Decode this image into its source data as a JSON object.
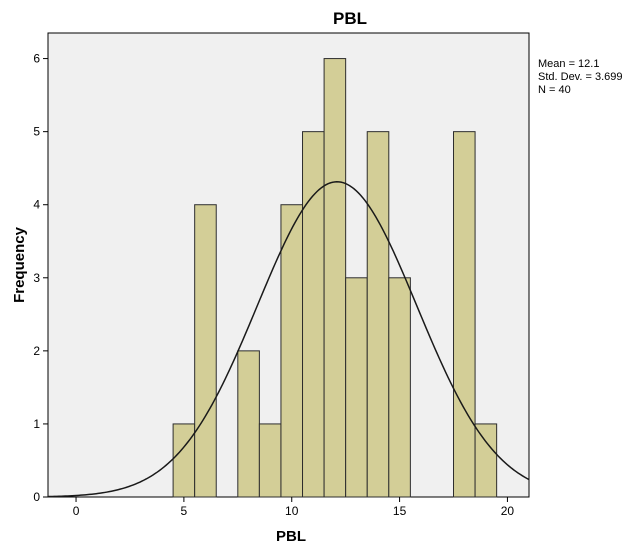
{
  "chart_data": {
    "type": "bar",
    "title": "PBL",
    "xlabel": "PBL",
    "ylabel": "Frequency",
    "xlim": [
      -1.3,
      21.0
    ],
    "ylim": [
      0,
      6.35
    ],
    "xticks": [
      0,
      5,
      10,
      15,
      20
    ],
    "yticks": [
      0,
      1,
      2,
      3,
      4,
      5,
      6
    ],
    "bin_width": 1,
    "bins": [
      {
        "x": 5,
        "count": 1
      },
      {
        "x": 6,
        "count": 4
      },
      {
        "x": 8,
        "count": 2
      },
      {
        "x": 9,
        "count": 1
      },
      {
        "x": 10,
        "count": 4
      },
      {
        "x": 11,
        "count": 5
      },
      {
        "x": 12,
        "count": 6
      },
      {
        "x": 13,
        "count": 3
      },
      {
        "x": 14,
        "count": 5
      },
      {
        "x": 15,
        "count": 3
      },
      {
        "x": 18,
        "count": 5
      },
      {
        "x": 19,
        "count": 1
      }
    ],
    "normal_curve": {
      "mean": 12.1,
      "std_dev": 3.699,
      "n": 40
    },
    "stats_lines": [
      "Mean = 12.1",
      "Std. Dev. = 3.699",
      "N = 40"
    ],
    "legend_position": "right",
    "grid": false,
    "colors": {
      "plot_background": "#f0f0f0",
      "bar_fill": "#d3ce97",
      "bar_stroke": "#2d2d2d",
      "curve": "#1a1a1a",
      "axis": "#000000"
    }
  }
}
